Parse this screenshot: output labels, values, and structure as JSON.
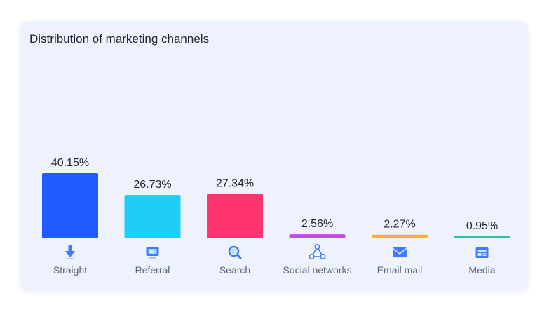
{
  "card": {
    "title": "Distribution of marketing channels"
  },
  "chart_data": {
    "type": "bar",
    "title": "Distribution of marketing channels",
    "categories": [
      "Straight",
      "Referral",
      "Search",
      "Social networks",
      "Email mail",
      "Media"
    ],
    "values": [
      40.15,
      26.73,
      27.34,
      2.56,
      2.27,
      0.95
    ],
    "value_labels": [
      "40.15%",
      "26.73%",
      "27.34%",
      "2.56%",
      "2.27%",
      "0.95%"
    ],
    "colors": [
      "#1f5bff",
      "#1fcdf5",
      "#ff3570",
      "#c04ee0",
      "#f7b23b",
      "#23c49a"
    ],
    "icons": [
      "download-arrow-icon",
      "monitor-icon",
      "search-icon",
      "share-network-icon",
      "envelope-icon",
      "newspaper-icon"
    ],
    "ylim": [
      0,
      40.15
    ],
    "grid": false,
    "legend": "none"
  }
}
